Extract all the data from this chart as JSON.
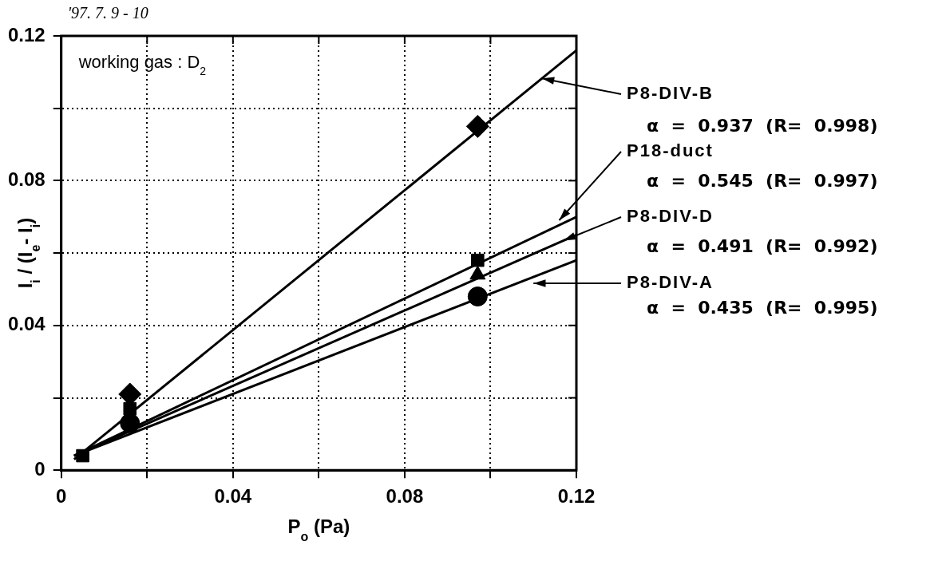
{
  "chart_data": {
    "type": "scatter",
    "xlabel": "P$_{o}$ (Pa)",
    "ylabel": "I$_{i}$ / (I$_{e}$- I$_{i}$)",
    "annotations": [
      "'97. 7. 9 - 10",
      "working gas : D$_{2}$",
      "α  =  0.937  (R=  0.998)",
      "α  =  0.545  (R=  0.997)",
      "α  =  0.491  (R=  0.992)",
      "α  =  0.435  (R=  0.995)"
    ],
    "xlim": [
      0,
      0.12
    ],
    "ylim": [
      0,
      0.12
    ],
    "xticks": [
      0,
      {
        "value": 0.02,
        "label": null
      },
      0.04,
      {
        "value": 0.06,
        "label": null
      },
      0.08,
      {
        "value": 0.1,
        "label": null
      },
      0.12
    ],
    "yticks": [
      0,
      {
        "value": 0.02,
        "label": null
      },
      0.04,
      {
        "value": 0.06,
        "label": null
      },
      0.08,
      {
        "value": 0.1,
        "label": null
      },
      0.12
    ],
    "grid": true,
    "legend": "right",
    "series": [
      {
        "marker": "diamond",
        "color": "#000000",
        "x": [
          0.016,
          0.097
        ],
        "values": [
          0.021,
          0.095
        ]
      },
      {
        "marker": "square",
        "color": "#000000",
        "x": [
          0.005,
          0.016,
          0.097
        ],
        "values": [
          0.004,
          0.017,
          0.058
        ]
      },
      {
        "marker": "triangle",
        "color": "#000000",
        "x": [
          0.097
        ],
        "values": [
          0.054
        ]
      },
      {
        "marker": "circle",
        "color": "#000000",
        "x": [
          0.016,
          0.097
        ],
        "values": [
          0.013,
          0.048
        ]
      },
      {
        "type": "line",
        "name": "P8-DIV-B",
        "color": "#000000",
        "x": [
          0.003,
          0.12
        ],
        "values": [
          0.003,
          0.116
        ]
      },
      {
        "type": "line",
        "name": "P18-duct",
        "color": "#000000",
        "x": [
          0.003,
          0.12
        ],
        "values": [
          0.004,
          0.07
        ]
      },
      {
        "type": "line",
        "name": "P8-DIV-D",
        "color": "#000000",
        "x": [
          0.003,
          0.12
        ],
        "values": [
          0.004,
          0.065
        ]
      },
      {
        "type": "line",
        "name": "P8-DIV-A",
        "color": "#000000",
        "x": [
          0.003,
          0.12
        ],
        "values": [
          0.004,
          0.058
        ]
      }
    ]
  }
}
